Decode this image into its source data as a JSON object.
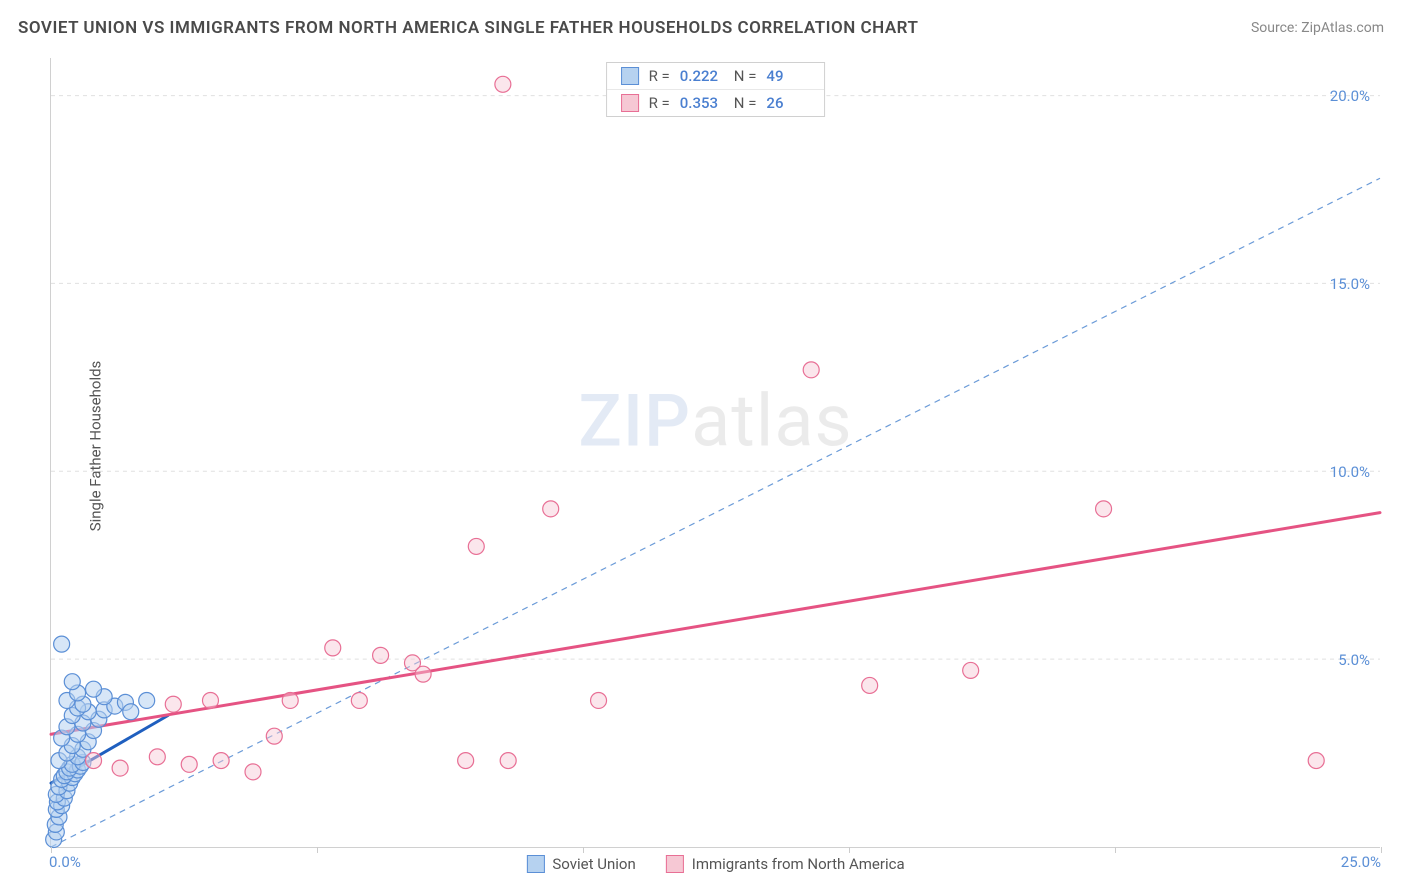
{
  "title": "SOVIET UNION VS IMMIGRANTS FROM NORTH AMERICA SINGLE FATHER HOUSEHOLDS CORRELATION CHART",
  "source": "Source: ZipAtlas.com",
  "y_axis_label": "Single Father Households",
  "watermark_zip": "ZIP",
  "watermark_atlas": "atlas",
  "chart": {
    "type": "scatter",
    "xlim": [
      0,
      25
    ],
    "ylim": [
      0,
      21
    ],
    "x_ticks": [
      0,
      5,
      10,
      15,
      20,
      25
    ],
    "x_tick_labels": [
      "0.0%",
      "",
      "",
      "",
      "",
      "25.0%"
    ],
    "y_ticks": [
      5,
      10,
      15,
      20
    ],
    "y_tick_labels": [
      "5.0%",
      "10.0%",
      "15.0%",
      "20.0%"
    ],
    "background_color": "#ffffff",
    "grid_color": "#e0e0e0",
    "grid_dash": "4,4",
    "marker_radius": 8,
    "marker_stroke_width": 1.2,
    "tick_label_color": "#5b8fd6",
    "tick_label_fontsize": 15,
    "axis_line_color": "#d0d0d0",
    "identity_line": {
      "color": "#6b9bd8",
      "dash": "6,5",
      "width": 1.2,
      "from": [
        0,
        0
      ],
      "to": [
        25,
        17.8
      ]
    }
  },
  "series": [
    {
      "key": "soviet",
      "label": "Soviet Union",
      "fill": "#b6d2f0",
      "stroke": "#5b8fd6",
      "fill_opacity": 0.55,
      "R": "0.222",
      "N": "49",
      "trend": {
        "from": [
          0,
          1.7
        ],
        "to": [
          2.2,
          3.5
        ],
        "color": "#1f5fbf",
        "width": 3
      },
      "points": [
        [
          0.05,
          0.2
        ],
        [
          0.1,
          0.4
        ],
        [
          0.08,
          0.6
        ],
        [
          0.15,
          0.8
        ],
        [
          0.1,
          1.0
        ],
        [
          0.2,
          1.1
        ],
        [
          0.12,
          1.2
        ],
        [
          0.25,
          1.3
        ],
        [
          0.1,
          1.4
        ],
        [
          0.3,
          1.5
        ],
        [
          0.15,
          1.6
        ],
        [
          0.35,
          1.7
        ],
        [
          0.2,
          1.8
        ],
        [
          0.4,
          1.85
        ],
        [
          0.25,
          1.9
        ],
        [
          0.45,
          1.95
        ],
        [
          0.3,
          2.0
        ],
        [
          0.5,
          2.05
        ],
        [
          0.35,
          2.1
        ],
        [
          0.55,
          2.15
        ],
        [
          0.4,
          2.2
        ],
        [
          0.6,
          2.25
        ],
        [
          0.15,
          2.3
        ],
        [
          0.5,
          2.4
        ],
        [
          0.3,
          2.5
        ],
        [
          0.6,
          2.6
        ],
        [
          0.4,
          2.7
        ],
        [
          0.7,
          2.8
        ],
        [
          0.2,
          2.9
        ],
        [
          0.5,
          3.0
        ],
        [
          0.8,
          3.1
        ],
        [
          0.3,
          3.2
        ],
        [
          0.6,
          3.3
        ],
        [
          0.9,
          3.4
        ],
        [
          0.4,
          3.5
        ],
        [
          0.7,
          3.6
        ],
        [
          1.0,
          3.65
        ],
        [
          0.5,
          3.7
        ],
        [
          1.2,
          3.75
        ],
        [
          0.6,
          3.8
        ],
        [
          1.4,
          3.85
        ],
        [
          0.3,
          3.9
        ],
        [
          1.0,
          4.0
        ],
        [
          0.5,
          4.1
        ],
        [
          0.8,
          4.2
        ],
        [
          0.4,
          4.4
        ],
        [
          0.2,
          5.4
        ],
        [
          1.5,
          3.6
        ],
        [
          1.8,
          3.9
        ]
      ]
    },
    {
      "key": "north_america",
      "label": "Immigrants from North America",
      "fill": "#f6c8d4",
      "stroke": "#e86f95",
      "fill_opacity": 0.45,
      "R": "0.353",
      "N": "26",
      "trend": {
        "from": [
          0,
          3.0
        ],
        "to": [
          25,
          8.9
        ],
        "color": "#e55383",
        "width": 3
      },
      "points": [
        [
          0.8,
          2.3
        ],
        [
          1.3,
          2.1
        ],
        [
          2.0,
          2.4
        ],
        [
          2.6,
          2.2
        ],
        [
          3.2,
          2.3
        ],
        [
          3.8,
          2.0
        ],
        [
          4.2,
          2.95
        ],
        [
          2.3,
          3.8
        ],
        [
          3.0,
          3.9
        ],
        [
          4.5,
          3.9
        ],
        [
          5.3,
          5.3
        ],
        [
          6.8,
          4.9
        ],
        [
          7.0,
          4.6
        ],
        [
          7.8,
          2.3
        ],
        [
          8.6,
          2.3
        ],
        [
          8.0,
          8.0
        ],
        [
          9.4,
          9.0
        ],
        [
          10.3,
          3.9
        ],
        [
          8.5,
          20.3
        ],
        [
          14.3,
          12.7
        ],
        [
          15.4,
          4.3
        ],
        [
          17.3,
          4.7
        ],
        [
          19.8,
          9.0
        ],
        [
          23.8,
          2.3
        ],
        [
          5.8,
          3.9
        ],
        [
          6.2,
          5.1
        ]
      ]
    }
  ],
  "stats_box": {
    "r_label": "R =",
    "n_label": "N ="
  },
  "colors": {
    "title": "#4a4a4a",
    "source": "#888888",
    "axis_label": "#555555"
  }
}
